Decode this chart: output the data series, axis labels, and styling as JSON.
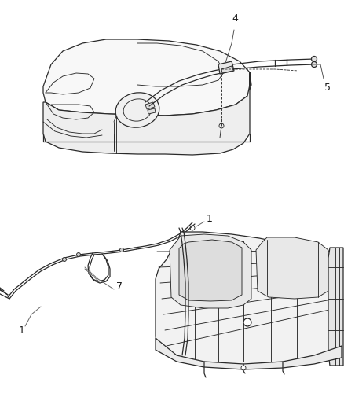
{
  "background_color": "#ffffff",
  "line_color": "#2a2a2a",
  "label_color": "#1a1a1a",
  "label_fontsize": 8.5,
  "fig_width": 4.38,
  "fig_height": 5.33,
  "dpi": 100
}
